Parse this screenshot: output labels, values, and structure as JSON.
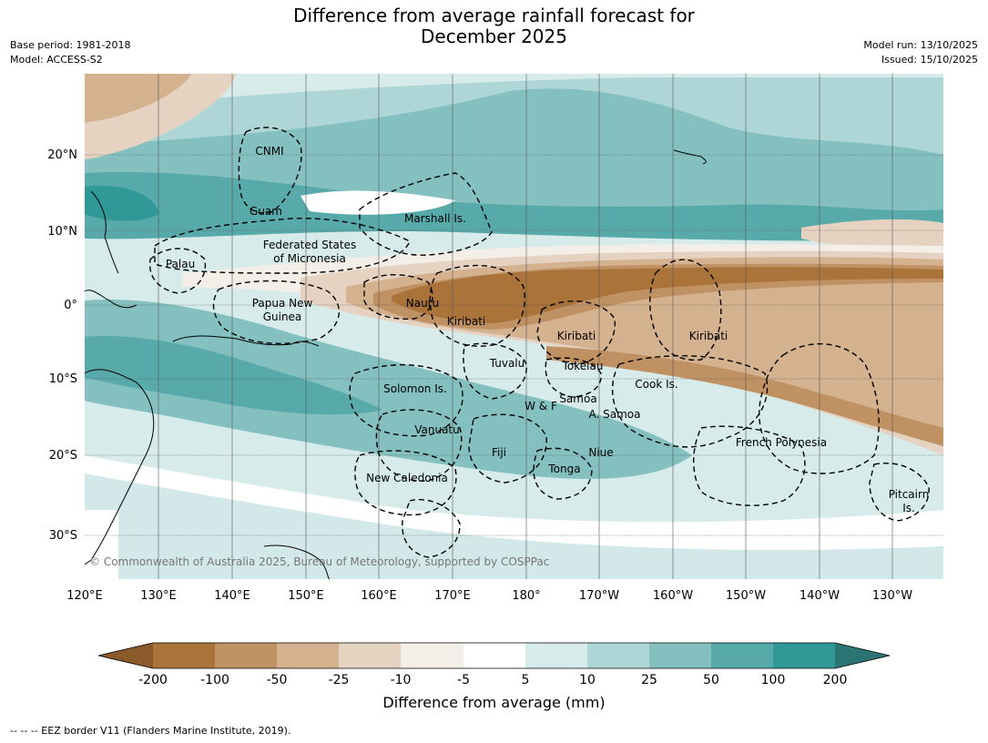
{
  "title_line1": "Difference from average rainfall forecast for",
  "title_line2": "December 2025",
  "meta_left": [
    "Base period: 1981-2018",
    "Model: ACCESS-S2"
  ],
  "meta_right": [
    "Model run: 13/10/2025",
    "Issued: 15/10/2025"
  ],
  "lat_labels": [
    "20°N",
    "10°N",
    "0°",
    "10°S",
    "20°S",
    "30°S"
  ],
  "lon_labels": [
    "120°E",
    "130°E",
    "140°E",
    "150°E",
    "160°E",
    "170°E",
    "180°",
    "170°W",
    "160°W",
    "150°W",
    "140°W",
    "130°W"
  ],
  "places": [
    "CNMI",
    "Guam",
    "Marshall Is.",
    "Federated States",
    "of Micronesia",
    "Palau",
    "Papua New",
    "Guinea",
    "Nauru",
    "Kiribati",
    "Kiribati",
    "Kiribati",
    "Tuvalu",
    "Tokelau",
    "Cook Is.",
    "Solomon Is.",
    "W & F",
    "Samoa",
    "A. Samoa",
    "Vanuatu",
    "Fiji",
    "Niue",
    "Tonga",
    "New Caledonia",
    "French Polynesia",
    "Pitcairn",
    "Is."
  ],
  "copyright": "© Commonwealth of Australia 2025, Bureau of Meteorology, supported by COSPPac",
  "colorbar": {
    "ticks": [
      "-200",
      "-100",
      "-50",
      "-25",
      "-10",
      "-5",
      "5",
      "10",
      "25",
      "50",
      "100",
      "200"
    ],
    "colors": [
      "#8a5a2b",
      "#a97339",
      "#bf9163",
      "#d4b18f",
      "#e5d2c0",
      "#f3eee8",
      "#ffffff",
      "#d6ebea",
      "#aed6d6",
      "#84c0c0",
      "#58a9a9",
      "#319898",
      "#2c7474"
    ],
    "title": "Difference from average (mm)"
  },
  "footnote": "--  --  -- EEZ border V11 (Flanders Marine Institute, 2019)."
}
